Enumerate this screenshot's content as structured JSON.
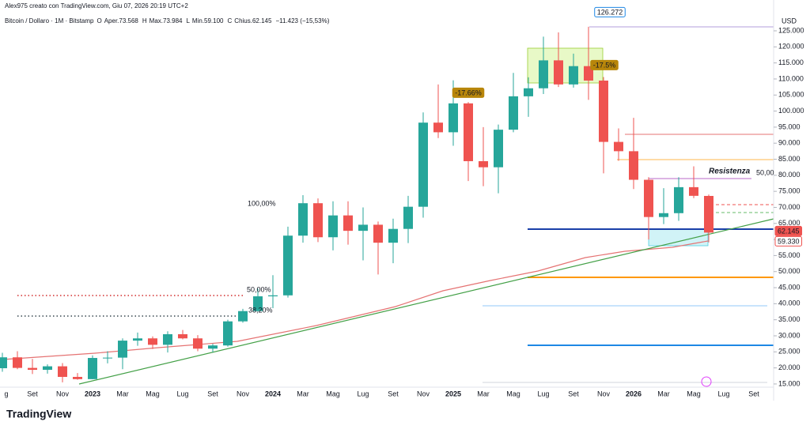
{
  "header": {
    "byline": "Alex975 creato con TradingView.com, Giu 07, 2026 20:19 UTC+2",
    "symbol": "Bitcoin / Dollaro · 1M · Bitstamp",
    "ohlc": [
      {
        "key": "O",
        "value": "Aper.73.568"
      },
      {
        "key": "H",
        "value": "Max.73.984"
      },
      {
        "key": "L",
        "value": "Min.59.100"
      },
      {
        "key": "C",
        "value": "Chius.62.145"
      }
    ],
    "change": "−11.423 (−15,53%)"
  },
  "chart_data": {
    "type": "candlestick",
    "y_axis_label": "USD",
    "categories": [
      "g",
      null,
      "Set",
      null,
      "Nov",
      null,
      "2023",
      null,
      "Mar",
      null,
      "Mag",
      null,
      "Lug",
      null,
      "Set",
      null,
      "Nov",
      null,
      "2024",
      null,
      "Mar",
      null,
      "Mag",
      null,
      "Lug",
      null,
      "Set",
      null,
      "Nov",
      null,
      "2025",
      null,
      "Mar",
      null,
      "Mag",
      null,
      "Lug",
      null,
      "Set",
      null,
      "Nov",
      null,
      "2026",
      null,
      "Mar",
      null,
      "Mag",
      null,
      "Lug",
      null,
      "Set"
    ],
    "open": [
      19900,
      23300,
      20000,
      19400,
      20500,
      17200,
      16500,
      23100,
      23200,
      28500,
      29200,
      27200,
      30500,
      29200,
      26000,
      27000,
      34500,
      37700,
      42300,
      42600,
      61200,
      71300,
      60700,
      67500,
      62700,
      64600,
      59000,
      63300,
      70200,
      96400,
      93400,
      102400,
      84400,
      82500,
      94200,
      104600,
      107100,
      115800,
      108300,
      114000,
      109500,
      90400,
      87500,
      78600,
      67000,
      68200,
      76300,
      73568,
      null,
      null,
      null
    ],
    "high": [
      24700,
      25200,
      22800,
      21100,
      21500,
      18400,
      23900,
      25200,
      29200,
      31000,
      29800,
      31400,
      31800,
      30200,
      27500,
      35000,
      38400,
      44700,
      48900,
      64000,
      73800,
      72800,
      71900,
      71900,
      70000,
      65600,
      66500,
      73600,
      99600,
      108300,
      109600,
      102800,
      95000,
      95800,
      111900,
      110500,
      123200,
      124500,
      117900,
      126272,
      110600,
      94600,
      97900,
      79400,
      76000,
      79400,
      82800,
      73984,
      null,
      null,
      null
    ],
    "low": [
      18800,
      19600,
      18100,
      18200,
      15500,
      16300,
      16500,
      21400,
      19600,
      26900,
      25900,
      24800,
      28900,
      25200,
      24900,
      26600,
      34100,
      37600,
      38600,
      41900,
      59000,
      59200,
      56600,
      58400,
      53500,
      49100,
      52600,
      58900,
      66800,
      91600,
      89200,
      78200,
      76600,
      74400,
      93400,
      98200,
      105300,
      107500,
      107300,
      103500,
      80600,
      84500,
      75700,
      60000,
      64800,
      65800,
      72900,
      59100,
      null,
      null,
      null
    ],
    "close": [
      23300,
      20000,
      19400,
      20500,
      17200,
      16500,
      23100,
      23200,
      28500,
      29200,
      27200,
      30500,
      29200,
      26000,
      27000,
      34500,
      37700,
      42300,
      42600,
      61200,
      71300,
      60700,
      67500,
      62700,
      64600,
      59000,
      63300,
      70200,
      96400,
      93400,
      102400,
      84400,
      82500,
      94200,
      104600,
      107100,
      115800,
      108300,
      114000,
      109500,
      90400,
      87500,
      78600,
      67000,
      68200,
      76300,
      73600,
      62145,
      null,
      null,
      null
    ],
    "up_color": "#26a69a",
    "down_color": "#ef5350",
    "ylim": [
      14000,
      134600
    ],
    "yticks": [
      {
        "value": 15000,
        "label": "15.000"
      },
      {
        "value": 20000,
        "label": "20.000"
      },
      {
        "value": 25000,
        "label": "25.000"
      },
      {
        "value": 30000,
        "label": "30.000"
      },
      {
        "value": 35000,
        "label": "35.000"
      },
      {
        "value": 40000,
        "label": "40.000"
      },
      {
        "value": 45000,
        "label": "45.000"
      },
      {
        "value": 50000,
        "label": "50.000"
      },
      {
        "value": 55000,
        "label": "55.000"
      },
      {
        "value": 60000,
        "label": "60.000"
      },
      {
        "value": 65000,
        "label": "65.000"
      },
      {
        "value": 70000,
        "label": "70.000"
      },
      {
        "value": 75000,
        "label": "75.000"
      },
      {
        "value": 80000,
        "label": "80.000"
      },
      {
        "value": 85000,
        "label": "85.000"
      },
      {
        "value": 90000,
        "label": "90.000"
      },
      {
        "value": 95000,
        "label": "95.000"
      },
      {
        "value": 100000,
        "label": "100.000"
      },
      {
        "value": 105000,
        "label": "105.000"
      },
      {
        "value": 110000,
        "label": "110.000"
      },
      {
        "value": 115000,
        "label": "115.000"
      },
      {
        "value": 120000,
        "label": "120.000"
      },
      {
        "value": 125000,
        "label": "125.000"
      }
    ],
    "grid": false,
    "annotations": [
      "126.272",
      "-17.66%",
      "-17.5%",
      "100,00%",
      "50,00%",
      "38,20%",
      "Resistenza",
      "50,00",
      "62.145",
      "59.330"
    ]
  },
  "footer": {
    "logo": "TradingView"
  }
}
